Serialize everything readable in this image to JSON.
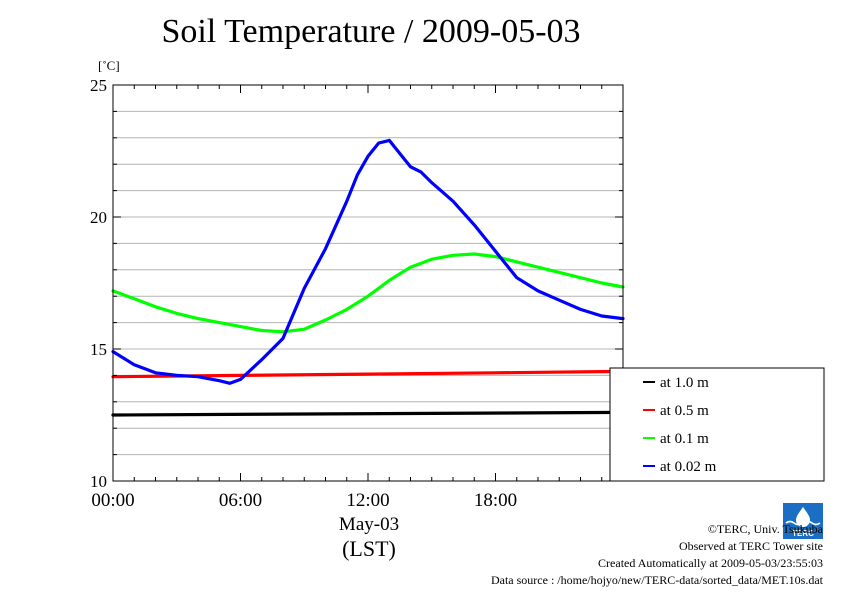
{
  "title": "Soil Temperature / 2009-05-03",
  "unit_label": "[˚C]",
  "date_label": "May-03",
  "tz_label": "(LST)",
  "credits": {
    "copyright": "©TERC, Univ. Tsukuba",
    "observed": "Observed at TERC Tower site",
    "created": "Created Automatically at 2009-05-03/23:55:03",
    "source": "Data source : /home/hojyo/new/TERC-data/sorted_data/MET.10s.dat"
  },
  "logo_text": "TERC",
  "colors": {
    "black": "#000000",
    "red": "#ff0000",
    "green": "#00ff00",
    "blue": "#0000ff",
    "grid": "#b4b4b4"
  },
  "chart_data": {
    "type": "line",
    "title": "Soil Temperature / 2009-05-03",
    "ylabel": "[˚C]",
    "xlabel": "(LST)",
    "x_unit": "hour",
    "xlim": [
      0,
      24
    ],
    "ylim": [
      10,
      25
    ],
    "xticks": [
      0,
      6,
      12,
      18
    ],
    "xtick_labels": [
      "00:00",
      "06:00",
      "12:00",
      "18:00"
    ],
    "yticks": [
      10,
      15,
      20,
      25
    ],
    "ytick_labels": [
      "10",
      "15",
      "20",
      "25"
    ],
    "grid": true,
    "legend_position": "right",
    "series": [
      {
        "name": "at 1.0 m",
        "color": "#000000",
        "x": [
          0,
          24
        ],
        "y": [
          12.5,
          12.6
        ]
      },
      {
        "name": "at 0.5 m",
        "color": "#ff0000",
        "x": [
          0,
          6,
          12,
          18,
          24
        ],
        "y": [
          13.95,
          14.0,
          14.05,
          14.1,
          14.15
        ]
      },
      {
        "name": "at 0.1 m",
        "color": "#00ff00",
        "x": [
          0,
          1,
          2,
          3,
          4,
          5,
          6,
          7,
          8,
          9,
          10,
          11,
          12,
          13,
          14,
          15,
          16,
          17,
          18,
          19,
          20,
          21,
          22,
          23,
          24
        ],
        "y": [
          17.2,
          16.9,
          16.6,
          16.35,
          16.15,
          16.0,
          15.85,
          15.7,
          15.65,
          15.75,
          16.1,
          16.5,
          17.0,
          17.6,
          18.1,
          18.4,
          18.55,
          18.6,
          18.5,
          18.3,
          18.1,
          17.9,
          17.7,
          17.5,
          17.35
        ]
      },
      {
        "name": "at 0.02 m",
        "color": "#0000ff",
        "x": [
          0,
          1,
          2,
          3,
          4,
          5,
          5.5,
          6,
          7,
          8,
          9,
          10,
          11,
          11.5,
          12,
          12.5,
          13,
          13.5,
          14,
          14.5,
          15,
          16,
          17,
          18,
          19,
          20,
          21,
          22,
          23,
          24
        ],
        "y": [
          14.9,
          14.4,
          14.1,
          14.0,
          13.95,
          13.8,
          13.7,
          13.85,
          14.6,
          15.4,
          17.3,
          18.8,
          20.6,
          21.6,
          22.3,
          22.8,
          22.9,
          22.4,
          21.9,
          21.7,
          21.3,
          20.6,
          19.7,
          18.7,
          17.7,
          17.2,
          16.85,
          16.5,
          16.25,
          16.15
        ]
      }
    ]
  }
}
